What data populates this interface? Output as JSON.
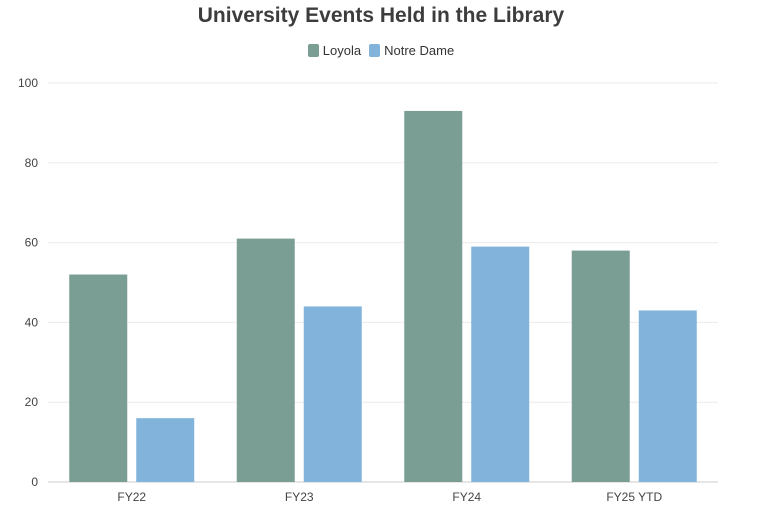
{
  "chart_data": {
    "type": "bar",
    "title": "University Events Held in the Library",
    "categories": [
      "FY22",
      "FY23",
      "FY24",
      "FY25 YTD"
    ],
    "series": [
      {
        "name": "Loyola",
        "values": [
          52,
          61,
          93,
          58
        ],
        "color": "#7a9e94"
      },
      {
        "name": "Notre Dame",
        "values": [
          16,
          44,
          59,
          43
        ],
        "color": "#82b4db"
      }
    ],
    "xlabel": "",
    "ylabel": "",
    "ylim": [
      0,
      100
    ],
    "yticks": [
      0,
      20,
      40,
      60,
      80,
      100
    ],
    "grid": true,
    "legend_position": "top-center"
  }
}
